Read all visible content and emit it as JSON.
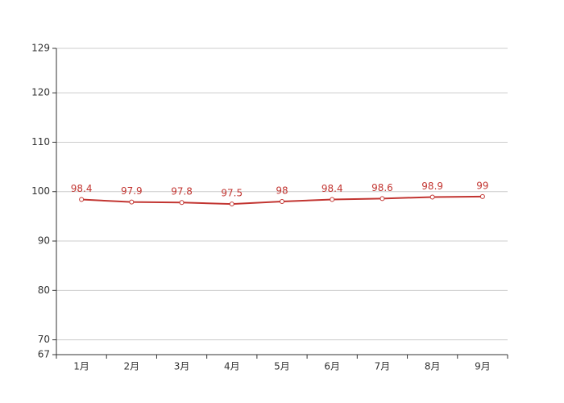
{
  "chart_data": {
    "type": "line",
    "categories": [
      "1月",
      "2月",
      "3月",
      "4月",
      "5月",
      "6月",
      "7月",
      "8月",
      "9月"
    ],
    "series": [
      {
        "color": "#c23531",
        "values": [
          98.4,
          97.9,
          97.8,
          97.5,
          98,
          98.4,
          98.6,
          98.9,
          99
        ]
      }
    ],
    "ylim": [
      67,
      129
    ],
    "yticks": [
      67,
      70,
      80,
      90,
      100,
      110,
      120,
      129
    ],
    "grid": true
  }
}
